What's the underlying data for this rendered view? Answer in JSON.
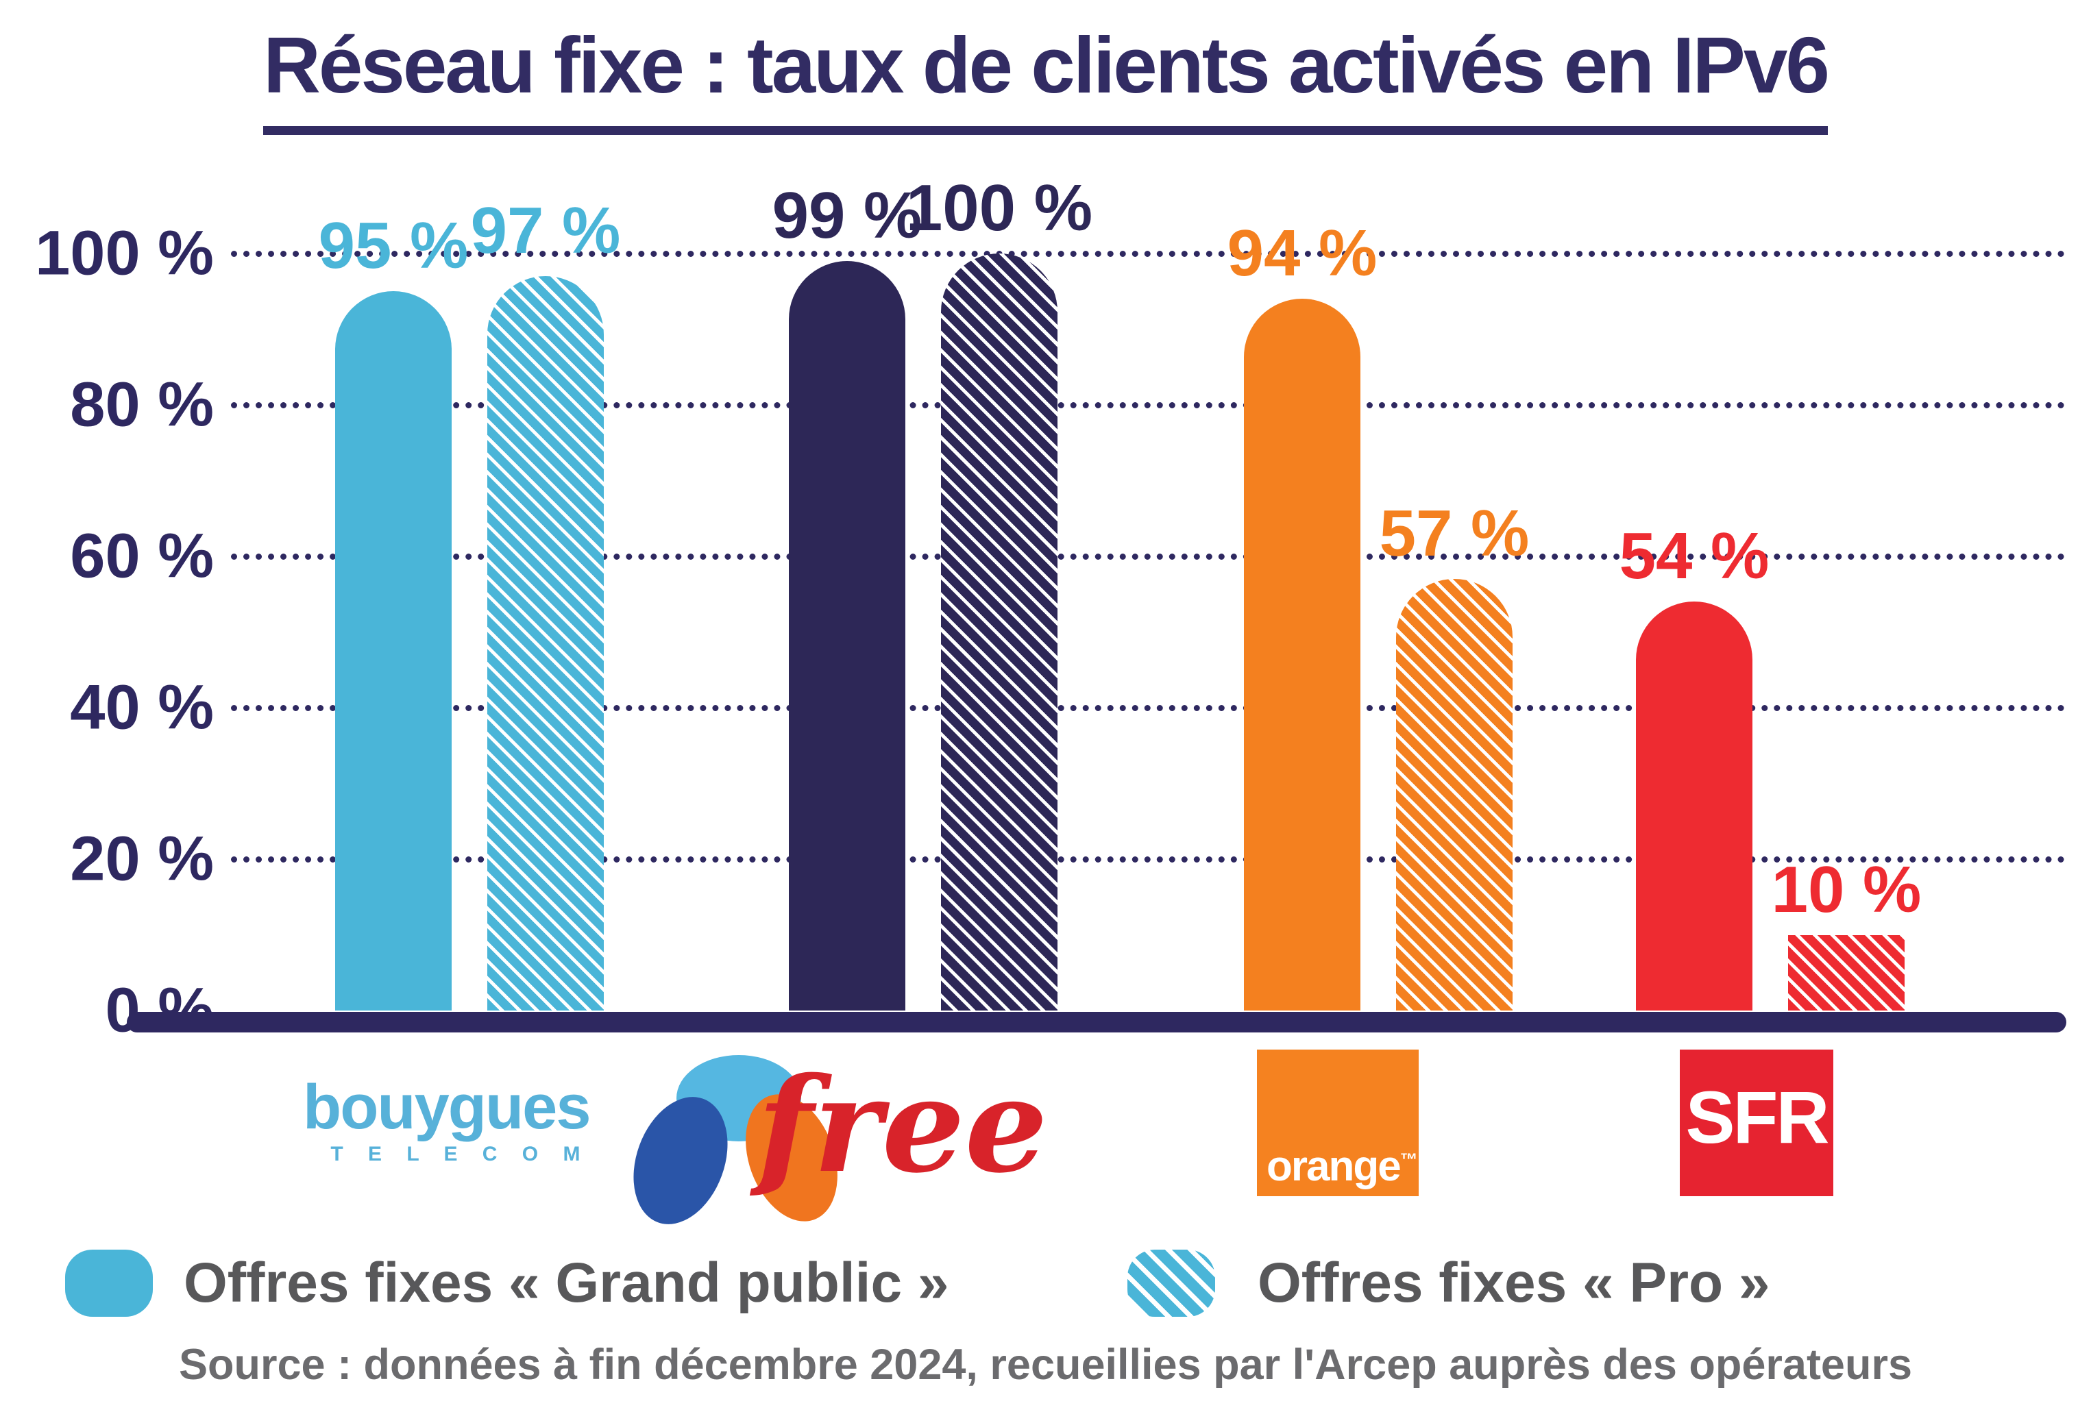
{
  "title": "Réseau fixe : taux de clients activés en IPv6",
  "chart_data": {
    "type": "bar",
    "title": "Réseau fixe : taux de clients activés en IPv6",
    "xlabel": "",
    "ylabel": "",
    "ylim": [
      0,
      100
    ],
    "yticks": [
      "100 %",
      "80 %",
      "60 %",
      "40 %",
      "20 %",
      "0 %"
    ],
    "grid": "horizontal-dotted",
    "legend_position": "bottom",
    "categories": [
      "Bouygues Telecom",
      "Free",
      "Orange",
      "SFR"
    ],
    "series": [
      {
        "name": "Offres fixes « Grand public »",
        "style": "solid",
        "values": [
          95,
          99,
          94,
          54
        ],
        "labels": [
          "95 %",
          "99 %",
          "94 %",
          "54 %"
        ]
      },
      {
        "name": "Offres fixes « Pro »",
        "style": "hatched",
        "values": [
          97,
          100,
          57,
          10
        ],
        "labels": [
          "97 %",
          "100 %",
          "57 %",
          "10 %"
        ]
      }
    ],
    "colors": {
      "bouygues": "#4ab5d8",
      "free": "#2d2757",
      "orange": "#f4801f",
      "sfr": "#ee2b31"
    },
    "axis_color": "#2e2860"
  },
  "legend": {
    "items": [
      {
        "label": "Offres fixes « Grand public »",
        "style": "solid"
      },
      {
        "label": "Offres fixes « Pro »",
        "style": "hatched"
      }
    ]
  },
  "logos": {
    "bouygues": {
      "name": "bouygues",
      "sub": "T E L E C O M"
    },
    "free": {
      "text": "free"
    },
    "orange": {
      "text": "orange",
      "tm": "™"
    },
    "sfr": {
      "text": "SFR"
    }
  },
  "source": "Source : données à fin décembre 2024, recueillies par l'Arcep auprès des opérateurs"
}
